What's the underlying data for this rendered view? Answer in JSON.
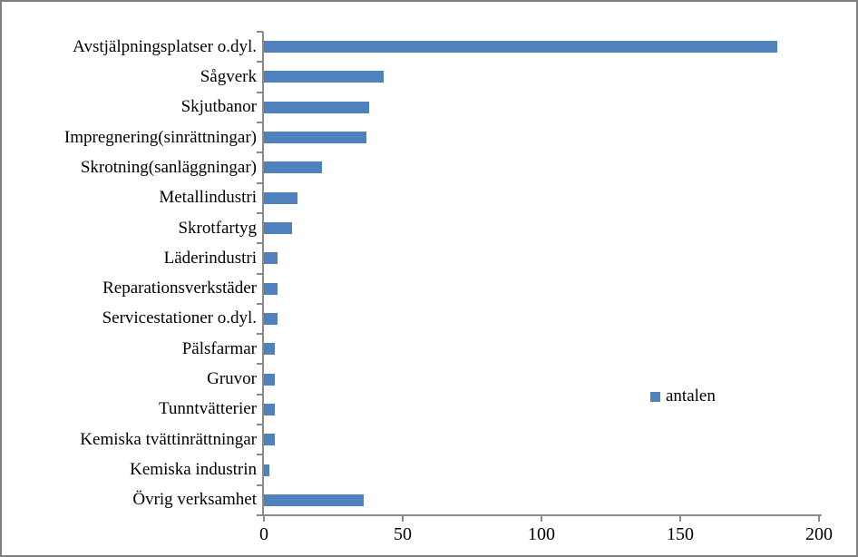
{
  "figure": {
    "background": "#ffffff",
    "border_color": "#7f7f7f"
  },
  "chart_data": {
    "type": "bar",
    "orientation": "horizontal",
    "title": "",
    "xlabel": "",
    "ylabel": "",
    "grid": false,
    "xlim": [
      0,
      200
    ],
    "x_ticks": [
      0,
      50,
      100,
      150,
      200
    ],
    "categories": [
      "Avstjälpningsplatser o.dyl.",
      "Sågverk",
      "Skjutbanor",
      "Impregnering(sinrättningar)",
      "Skrotning(sanläggningar)",
      "Metallindustri",
      "Skrotfartyg",
      "Läderindustri",
      "Reparationsverkstäder",
      "Servicestationer o.dyl.",
      "Pälsfarmar",
      "Gruvor",
      "Tunntvätterier",
      "Kemiska tvättinrättningar",
      "Kemiska industrin",
      "Övrig verksamhet"
    ],
    "series": [
      {
        "name": "antalen",
        "values": [
          185,
          43,
          38,
          37,
          21,
          12,
          10,
          5,
          5,
          5,
          4,
          4,
          4,
          4,
          2,
          36
        ]
      }
    ],
    "legend": {
      "label": "antalen",
      "position": "right"
    },
    "colors": {
      "bar": "#4f81bd",
      "axis": "#8a8a8a",
      "text": "#000000"
    }
  }
}
